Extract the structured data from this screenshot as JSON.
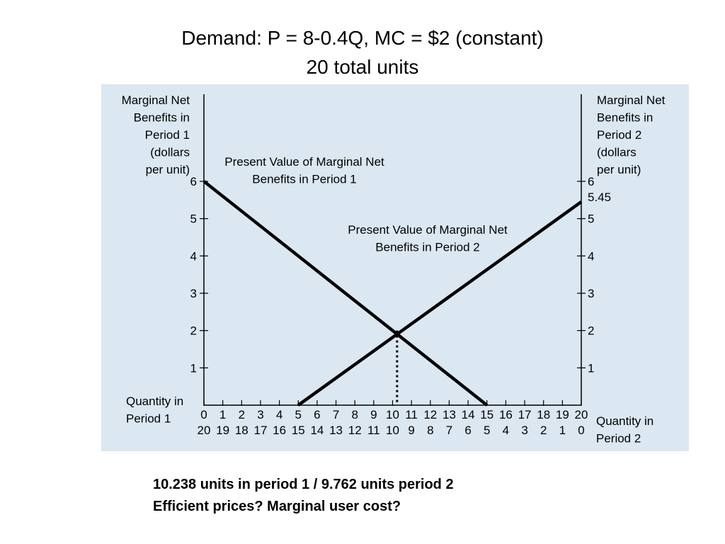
{
  "title": {
    "line1": "Demand: P = 8-0.4Q, MC = $2 (constant)",
    "line2": "20 total units"
  },
  "caption": {
    "line1": "10.238 units in period 1 / 9.762 units period 2",
    "line2": "Efficient prices? Marginal user cost?"
  },
  "chart_data": {
    "type": "line",
    "left_ylabel": [
      "Marginal Net",
      "Benefits in",
      "Period 1",
      "(dollars",
      "per unit)"
    ],
    "right_ylabel": [
      "Marginal Net",
      "Benefits in",
      "Period 2",
      "(dollars",
      "per unit)"
    ],
    "xlabel_period1": [
      "Quantity in",
      "Period 1"
    ],
    "xlabel_period2": [
      "Quantity in",
      "Period 2"
    ],
    "x_ticks_period1": [
      "0",
      "1",
      "2",
      "3",
      "4",
      "5",
      "6",
      "7",
      "8",
      "9",
      "10",
      "11",
      "12",
      "13",
      "14",
      "15",
      "16",
      "17",
      "18",
      "19",
      "20"
    ],
    "x_ticks_period2": [
      "20",
      "19",
      "18",
      "17",
      "16",
      "15",
      "14",
      "13",
      "12",
      "11",
      "10",
      "9",
      "8",
      "7",
      "6",
      "5",
      "4",
      "3",
      "2",
      "1",
      "0"
    ],
    "y_ticks": [
      "1",
      "2",
      "3",
      "4",
      "5",
      "6"
    ],
    "right_extra_tick": "5.45",
    "xlim": [
      0,
      20
    ],
    "ylim": [
      0,
      6
    ],
    "series": [
      {
        "name": "Present Value of Marginal Net Benefits in Period 1",
        "label_lines": [
          "Present Value of Marginal Net",
          "Benefits in Period 1"
        ],
        "x": [
          0,
          15
        ],
        "y": [
          6,
          0
        ]
      },
      {
        "name": "Present Value of Marginal Net Benefits in Period 2",
        "label_lines": [
          "Present Value of Marginal Net",
          "Benefits in Period 2"
        ],
        "x": [
          5,
          20
        ],
        "y": [
          0,
          5.45
        ]
      }
    ],
    "intersection": {
      "x": 10.238,
      "y": 2
    },
    "colors": {
      "panel": "#dbe7f1",
      "line": "#000000"
    }
  }
}
